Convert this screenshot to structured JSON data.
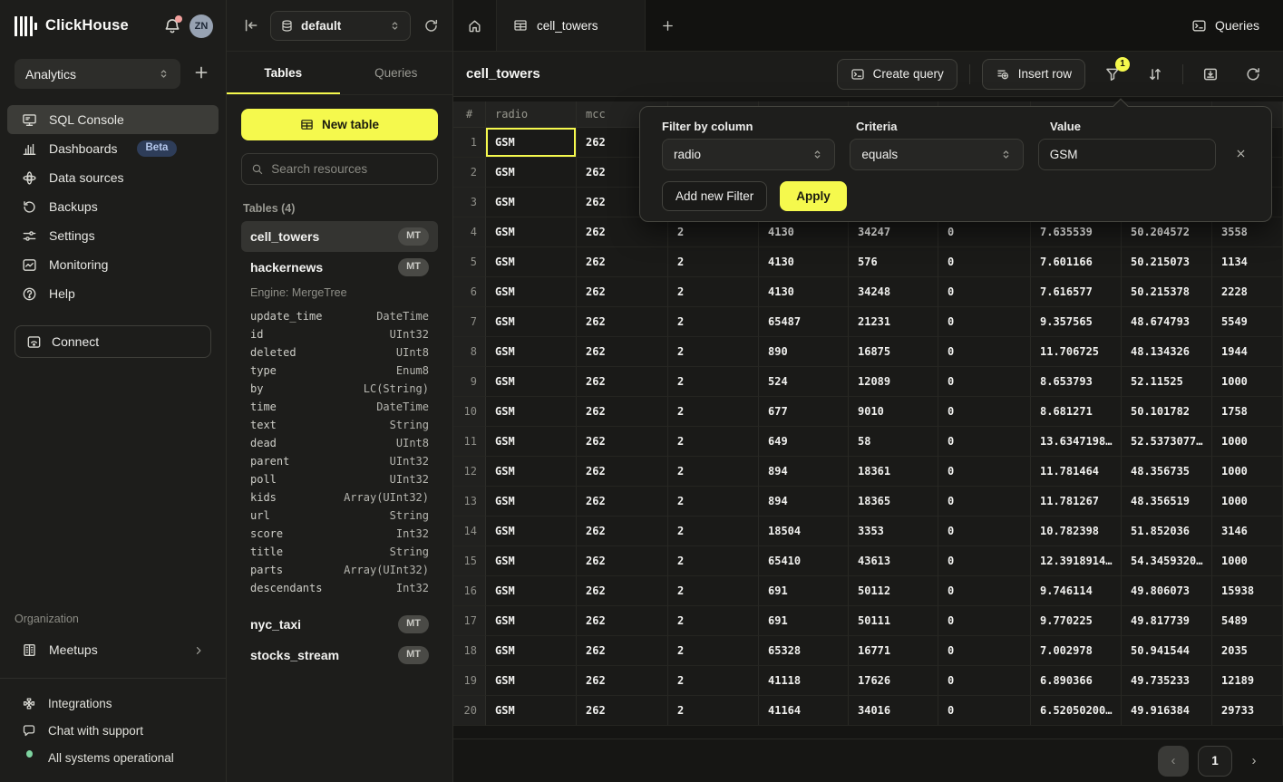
{
  "colors": {
    "accent_yellow": "#f5f94d",
    "beta_badge_bg": "#2e3d59",
    "beta_badge_text": "#b5c8ec",
    "status_green": "#7ed4a0",
    "notification_dot": "#f2a19e",
    "selected_cell_border": "#f5f94d"
  },
  "brand": {
    "name": "ClickHouse",
    "avatar_initials": "ZN"
  },
  "sidebar": {
    "workspace": "Analytics",
    "items": [
      {
        "label": "SQL Console",
        "icon": "console",
        "active": true
      },
      {
        "label": "Dashboards",
        "icon": "dashboards",
        "badge": "Beta"
      },
      {
        "label": "Data sources",
        "icon": "data-sources"
      },
      {
        "label": "Backups",
        "icon": "backups"
      },
      {
        "label": "Settings",
        "icon": "settings"
      },
      {
        "label": "Monitoring",
        "icon": "monitoring"
      },
      {
        "label": "Help",
        "icon": "help"
      }
    ],
    "connect_label": "Connect",
    "organization_label": "Organization",
    "meetups_label": "Meetups",
    "footer": [
      {
        "label": "Integrations",
        "icon": "integrations"
      },
      {
        "label": "Chat with support",
        "icon": "chat"
      },
      {
        "label": "All systems operational",
        "icon": "status-dot"
      }
    ]
  },
  "resources": {
    "database": "default",
    "tabs": [
      {
        "label": "Tables",
        "active": true
      },
      {
        "label": "Queries",
        "active": false
      }
    ],
    "new_table_label": "New table",
    "search_placeholder": "Search resources",
    "section_label": "Tables (4)",
    "tables": [
      {
        "name": "cell_towers",
        "badge": "MT",
        "active": true
      },
      {
        "name": "hackernews",
        "badge": "MT",
        "engine": "Engine: MergeTree",
        "columns": [
          {
            "name": "update_time",
            "type": "DateTime"
          },
          {
            "name": "id",
            "type": "UInt32"
          },
          {
            "name": "deleted",
            "type": "UInt8"
          },
          {
            "name": "type",
            "type": "Enum8"
          },
          {
            "name": "by",
            "type": "LC(String)"
          },
          {
            "name": "time",
            "type": "DateTime"
          },
          {
            "name": "text",
            "type": "String"
          },
          {
            "name": "dead",
            "type": "UInt8"
          },
          {
            "name": "parent",
            "type": "UInt32"
          },
          {
            "name": "poll",
            "type": "UInt32"
          },
          {
            "name": "kids",
            "type": "Array(UInt32)"
          },
          {
            "name": "url",
            "type": "String"
          },
          {
            "name": "score",
            "type": "Int32"
          },
          {
            "name": "title",
            "type": "String"
          },
          {
            "name": "parts",
            "type": "Array(UInt32)"
          },
          {
            "name": "descendants",
            "type": "Int32"
          }
        ]
      },
      {
        "name": "nyc_taxi",
        "badge": "MT"
      },
      {
        "name": "stocks_stream",
        "badge": "MT"
      }
    ]
  },
  "main": {
    "active_tab": "cell_towers",
    "queries_button": "Queries",
    "title": "cell_towers",
    "create_query_label": "Create query",
    "insert_row_label": "Insert row",
    "filter_badge": "1",
    "filter_popup": {
      "column_label": "Filter by column",
      "column_value": "radio",
      "criteria_label": "Criteria",
      "criteria_value": "equals",
      "value_label": "Value",
      "value": "GSM",
      "add_filter_label": "Add new Filter",
      "apply_label": "Apply"
    },
    "grid": {
      "headers": [
        "#",
        "radio",
        "mcc",
        "",
        "",
        "",
        "",
        "",
        "",
        ""
      ],
      "selected_cell": {
        "row": 0,
        "col": 1
      },
      "rows": [
        [
          "1",
          "GSM",
          "262",
          "",
          "",
          "",
          "",
          "",
          "",
          ""
        ],
        [
          "2",
          "GSM",
          "262",
          "",
          "",
          "",
          "",
          "",
          "",
          ""
        ],
        [
          "3",
          "GSM",
          "262",
          "",
          "",
          "",
          "",
          "",
          "",
          ""
        ],
        [
          "4",
          "GSM",
          "262",
          "2",
          "4130",
          "34247",
          "0",
          "7.635539",
          "50.204572",
          "3558"
        ],
        [
          "5",
          "GSM",
          "262",
          "2",
          "4130",
          "576",
          "0",
          "7.601166",
          "50.215073",
          "1134"
        ],
        [
          "6",
          "GSM",
          "262",
          "2",
          "4130",
          "34248",
          "0",
          "7.616577",
          "50.215378",
          "2228"
        ],
        [
          "7",
          "GSM",
          "262",
          "2",
          "65487",
          "21231",
          "0",
          "9.357565",
          "48.674793",
          "5549"
        ],
        [
          "8",
          "GSM",
          "262",
          "2",
          "890",
          "16875",
          "0",
          "11.706725",
          "48.134326",
          "1944"
        ],
        [
          "9",
          "GSM",
          "262",
          "2",
          "524",
          "12089",
          "0",
          "8.653793",
          "52.11525",
          "1000"
        ],
        [
          "10",
          "GSM",
          "262",
          "2",
          "677",
          "9010",
          "0",
          "8.681271",
          "50.101782",
          "1758"
        ],
        [
          "11",
          "GSM",
          "262",
          "2",
          "649",
          "58",
          "0",
          "13.6347198…",
          "52.5373077…",
          "1000"
        ],
        [
          "12",
          "GSM",
          "262",
          "2",
          "894",
          "18361",
          "0",
          "11.781464",
          "48.356735",
          "1000"
        ],
        [
          "13",
          "GSM",
          "262",
          "2",
          "894",
          "18365",
          "0",
          "11.781267",
          "48.356519",
          "1000"
        ],
        [
          "14",
          "GSM",
          "262",
          "2",
          "18504",
          "3353",
          "0",
          "10.782398",
          "51.852036",
          "3146"
        ],
        [
          "15",
          "GSM",
          "262",
          "2",
          "65410",
          "43613",
          "0",
          "12.3918914…",
          "54.3459320…",
          "1000"
        ],
        [
          "16",
          "GSM",
          "262",
          "2",
          "691",
          "50112",
          "0",
          "9.746114",
          "49.806073",
          "15938"
        ],
        [
          "17",
          "GSM",
          "262",
          "2",
          "691",
          "50111",
          "0",
          "9.770225",
          "49.817739",
          "5489"
        ],
        [
          "18",
          "GSM",
          "262",
          "2",
          "65328",
          "16771",
          "0",
          "7.002978",
          "50.941544",
          "2035"
        ],
        [
          "19",
          "GSM",
          "262",
          "2",
          "41118",
          "17626",
          "0",
          "6.890366",
          "49.735233",
          "12189"
        ],
        [
          "20",
          "GSM",
          "262",
          "2",
          "41164",
          "34016",
          "0",
          "6.52050200…",
          "49.916384",
          "29733"
        ]
      ]
    },
    "pagination": {
      "prev": "‹",
      "page": "1",
      "next": "›"
    }
  }
}
